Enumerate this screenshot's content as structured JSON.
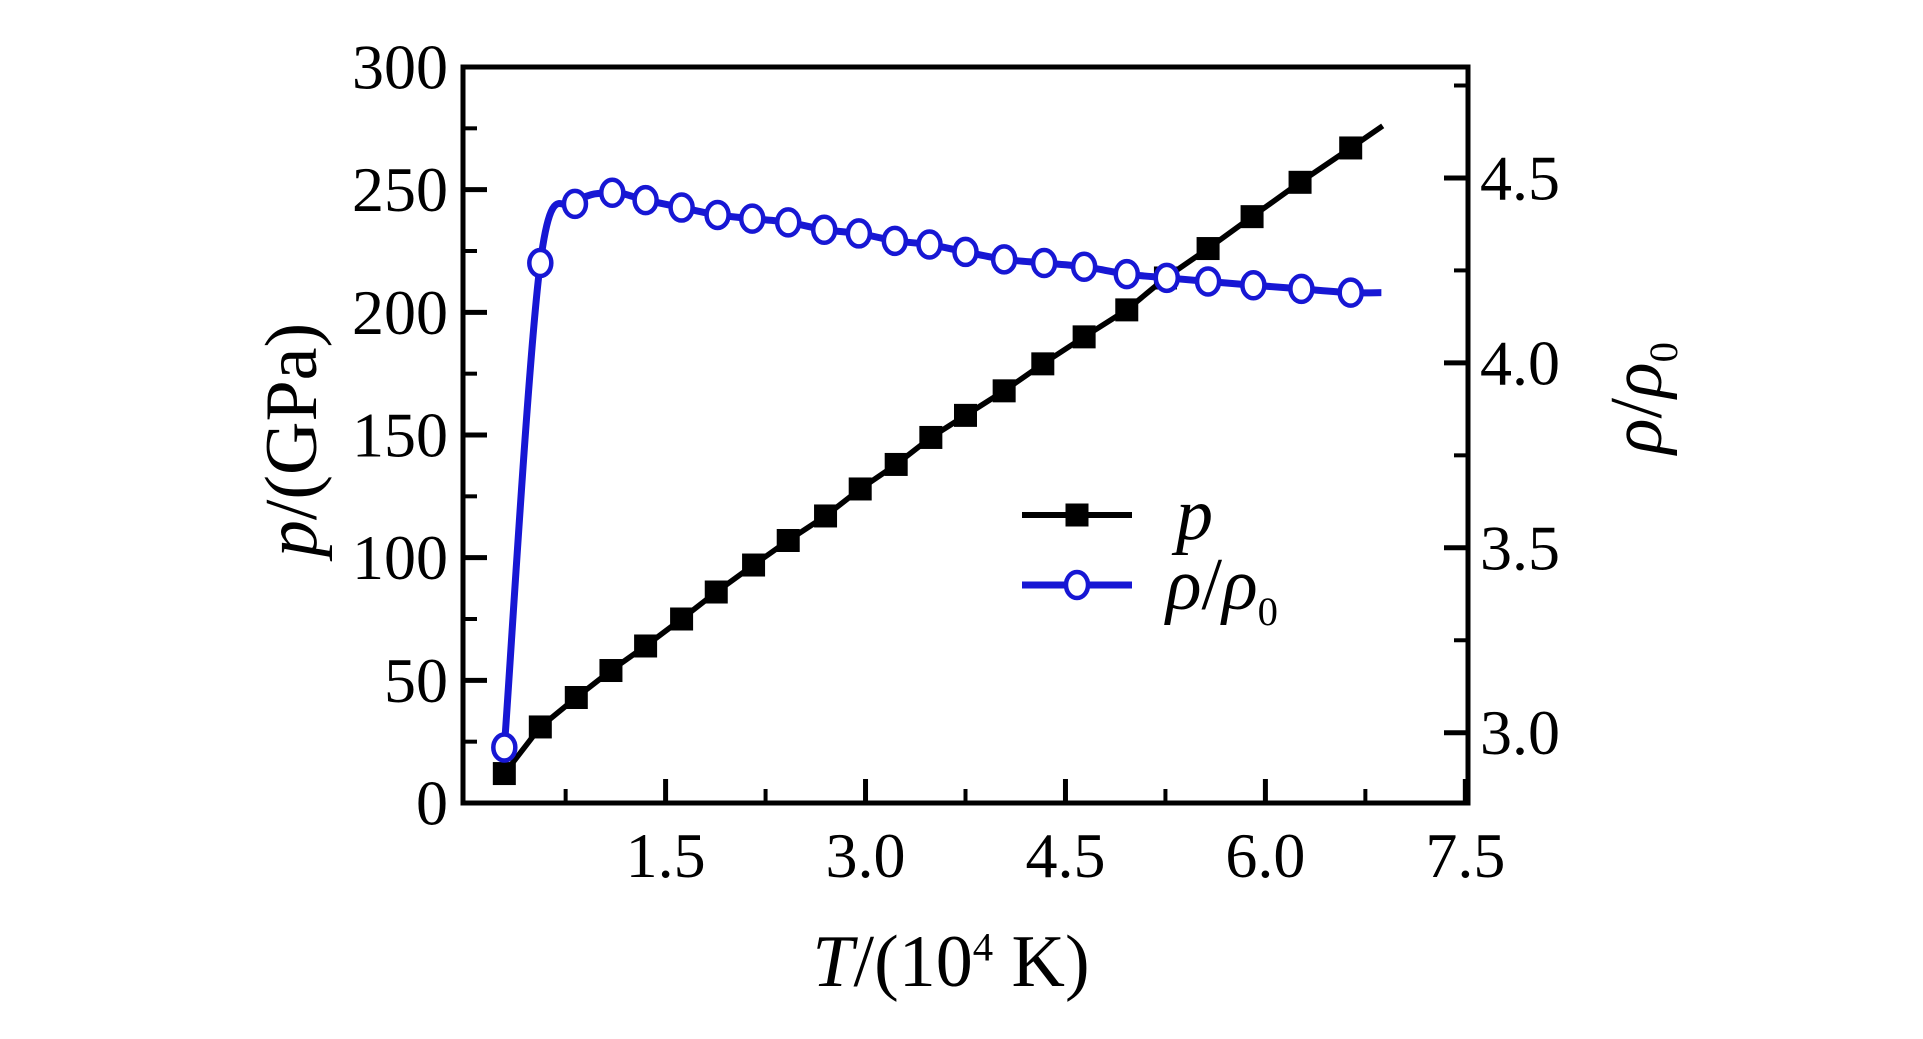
{
  "figure": {
    "background": "#ffffff",
    "frame_color": "#000000"
  },
  "axes": {
    "x": {
      "title_parts": [
        {
          "t": "T",
          "style": "italic"
        },
        {
          "t": "/(10",
          "style": "normal"
        },
        {
          "t": "4",
          "style": "sup"
        },
        {
          "t": " K)",
          "style": "normal"
        }
      ],
      "tick_labels": [
        "1.5",
        "3.0",
        "4.5",
        "6.0",
        "7.5"
      ],
      "tick_values": [
        1.5,
        3.0,
        4.5,
        6.0,
        7.5
      ],
      "minor_tick_values": [
        0.75,
        2.25,
        3.75,
        5.25,
        6.75
      ],
      "range": [
        -0.02,
        7.52
      ]
    },
    "y_left": {
      "title_parts": [
        {
          "t": "p",
          "style": "italic"
        },
        {
          "t": "/(GPa)",
          "style": "normal"
        }
      ],
      "tick_labels": [
        "0",
        "50",
        "100",
        "150",
        "200",
        "250",
        "300"
      ],
      "tick_values": [
        0,
        50,
        100,
        150,
        200,
        250,
        300
      ],
      "minor_tick_values": [
        25,
        75,
        125,
        175,
        225,
        275
      ],
      "range": [
        0,
        300
      ]
    },
    "y_right": {
      "title_parts": [
        {
          "t": "ρ",
          "style": "italic"
        },
        {
          "t": "/",
          "style": "normal"
        },
        {
          "t": "ρ",
          "style": "italic"
        },
        {
          "t": "0",
          "style": "sub"
        }
      ],
      "tick_labels": [
        "3.0",
        "3.5",
        "4.0",
        "4.5"
      ],
      "tick_values": [
        3.0,
        3.5,
        4.0,
        4.5
      ],
      "minor_tick_values": [
        3.25,
        3.75,
        4.25,
        4.75
      ],
      "range": [
        2.81,
        4.8
      ]
    }
  },
  "legend": {
    "items": [
      {
        "series": "p",
        "label_parts": [
          {
            "t": "p",
            "style": "italic"
          }
        ]
      },
      {
        "series": "rho",
        "label_parts": [
          {
            "t": "ρ",
            "style": "italic"
          },
          {
            "t": "/",
            "style": "normal"
          },
          {
            "t": "ρ",
            "style": "italic"
          },
          {
            "t": "0",
            "style": "sub"
          }
        ]
      }
    ]
  },
  "chart_data": {
    "type": "line",
    "title": "",
    "xlabel": "T/(10^4 K)",
    "ylabel_left": "p/(GPa)",
    "ylabel_right": "ρ/ρ0",
    "x_range": [
      -0.02,
      7.52
    ],
    "y_left_range": [
      0,
      300
    ],
    "y_right_range": [
      2.81,
      4.8
    ],
    "grid": false,
    "legend_position": "center-right",
    "series": [
      {
        "name": "p",
        "axis": "left",
        "marker": "filled-square",
        "color": "#000000",
        "smooth": false,
        "x": [
          0.29,
          0.56,
          0.83,
          1.09,
          1.35,
          1.62,
          1.88,
          2.16,
          2.42,
          2.7,
          2.96,
          3.23,
          3.49,
          3.75,
          4.04,
          4.33,
          4.64,
          4.96,
          5.25,
          5.57,
          5.9,
          6.26,
          6.64
        ],
        "y": [
          12,
          31,
          43,
          54,
          64,
          75,
          86,
          97,
          107,
          117,
          128,
          138,
          149,
          158,
          168,
          179,
          190,
          201,
          214,
          226,
          239,
          253,
          267
        ],
        "line_end": {
          "x": 6.88,
          "y": 276
        }
      },
      {
        "name": "ρ/ρ0",
        "axis": "right",
        "marker": "open-circle",
        "color": "#1717d4",
        "smooth": true,
        "x": [
          0.29,
          0.56,
          0.82,
          1.1,
          1.35,
          1.62,
          1.89,
          2.15,
          2.42,
          2.69,
          2.95,
          3.22,
          3.48,
          3.75,
          4.04,
          4.34,
          4.64,
          4.96,
          5.26,
          5.57,
          5.91,
          6.27,
          6.64
        ],
        "y": [
          2.96,
          4.27,
          4.43,
          4.46,
          4.44,
          4.42,
          4.4,
          4.39,
          4.38,
          4.36,
          4.35,
          4.33,
          4.32,
          4.3,
          4.28,
          4.27,
          4.26,
          4.24,
          4.23,
          4.22,
          4.21,
          4.2,
          4.19
        ],
        "line_end": {
          "x": 6.87,
          "y": 4.19
        }
      }
    ]
  }
}
